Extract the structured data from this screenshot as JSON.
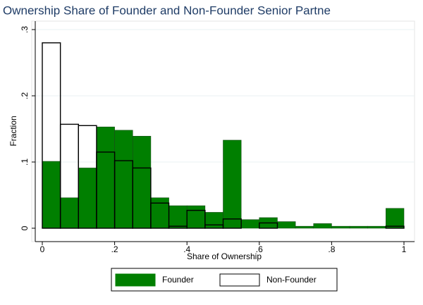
{
  "chart_data": {
    "type": "histogram",
    "title": "Ownership Share of Founder and Non-Founder Senior Partne",
    "xlabel": "Share of Ownership",
    "ylabel": "Fraction",
    "bins": [
      0,
      0.05,
      0.1,
      0.15,
      0.2,
      0.25,
      0.3,
      0.35,
      0.4,
      0.45,
      0.5,
      0.55,
      0.6,
      0.65,
      0.7,
      0.75,
      0.8,
      0.85,
      0.9,
      0.95,
      1
    ],
    "series": [
      {
        "name": "Founder",
        "color": "#007f00",
        "values": [
          0.101,
          0.046,
          0.091,
          0.153,
          0.148,
          0.139,
          0.046,
          0.034,
          0.034,
          0.024,
          0.133,
          0.013,
          0.016,
          0.01,
          0.003,
          0.007,
          0.003,
          0.003,
          0.003,
          0.03
        ]
      },
      {
        "name": "Non-Founder",
        "color": "#000000",
        "values": [
          0.28,
          0.157,
          0.155,
          0.115,
          0.102,
          0.091,
          0.038,
          0.003,
          0.027,
          0.005,
          0.014,
          0,
          0.008,
          0,
          0,
          0,
          0,
          0,
          0,
          0.003
        ]
      }
    ],
    "xlim": [
      0,
      1
    ],
    "xticks": [
      0,
      {
        "value": 0.2,
        "label": ".2"
      },
      {
        "value": 0.4,
        "label": ".4"
      },
      {
        "value": 0.6,
        "label": ".6"
      },
      {
        "value": 0.8,
        "label": ".8"
      },
      1
    ],
    "ylim": [
      0,
      0.3
    ],
    "yticks": [
      0,
      {
        "value": 0.1,
        "label": ".1"
      },
      {
        "value": 0.2,
        "label": ".2"
      },
      {
        "value": 0.3,
        "label": ".3"
      }
    ],
    "grid": true
  }
}
